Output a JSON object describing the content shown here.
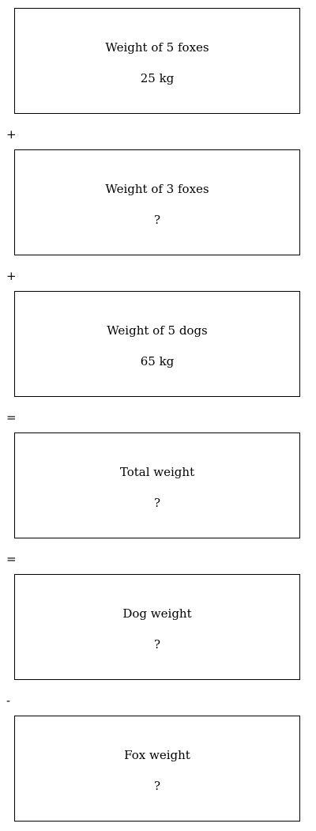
{
  "blocks": [
    {
      "label": "Weight of 5 foxes",
      "value": "25 kg"
    },
    {
      "label": "Weight of 3 foxes",
      "value": "?"
    },
    {
      "label": "Weight of 5 dogs",
      "value": "65 kg"
    },
    {
      "label": "Total weight",
      "value": "?"
    },
    {
      "label": "Dog weight",
      "value": "?"
    },
    {
      "label": "Fox weight",
      "value": "?"
    }
  ],
  "operators": [
    "+",
    "+",
    "=",
    "=",
    "-"
  ]
}
